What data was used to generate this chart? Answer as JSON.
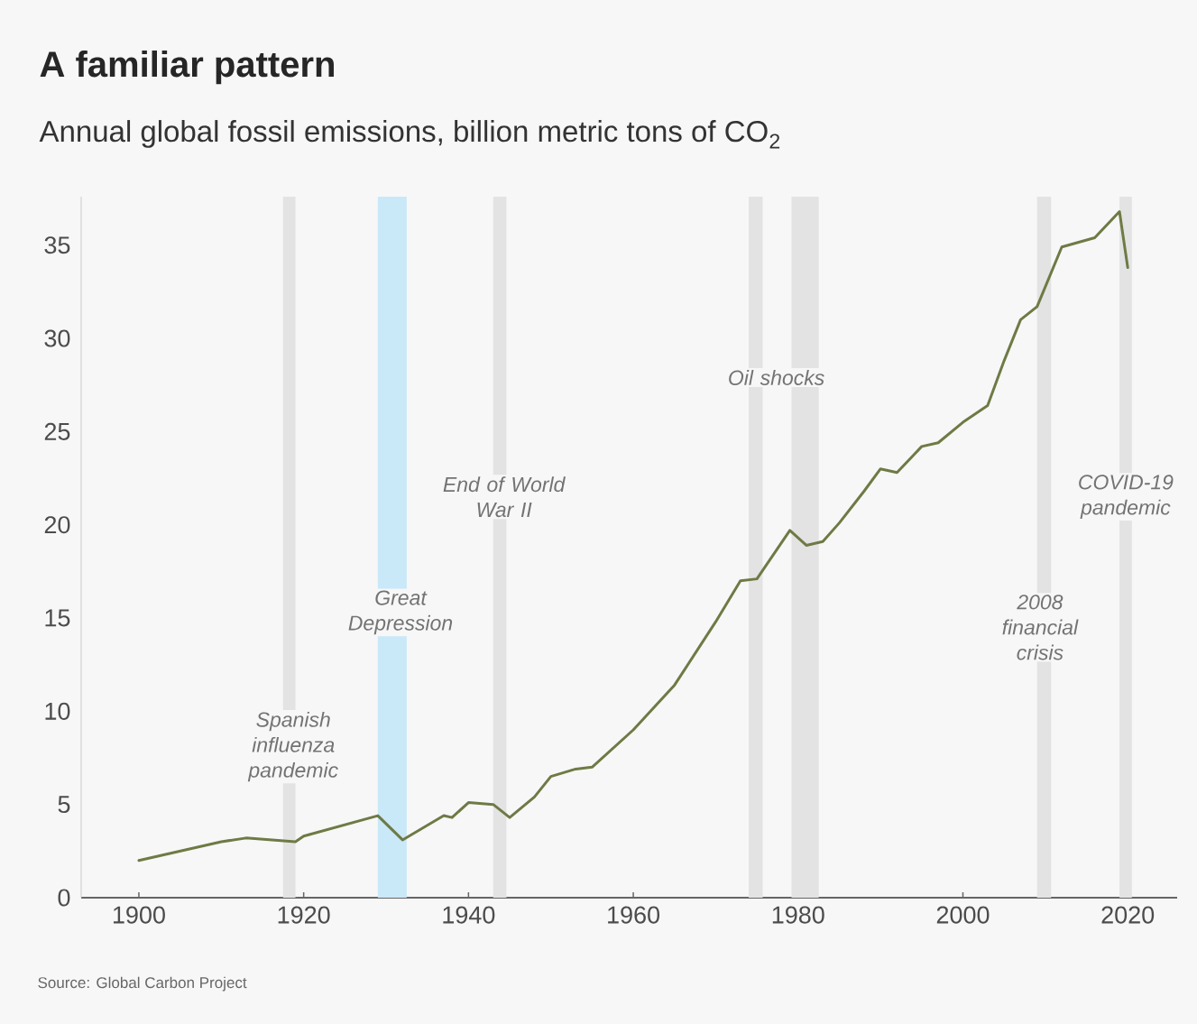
{
  "chart_data": {
    "type": "line",
    "title": "A familiar pattern",
    "subtitle": "Annual global fossil emissions, billion metric tons of CO$_{2}$",
    "x": [
      1900,
      1910,
      1913,
      1919,
      1920,
      1929,
      1932,
      1937,
      1938,
      1940,
      1943,
      1945,
      1948,
      1950,
      1953,
      1955,
      1960,
      1965,
      1970,
      1973,
      1975,
      1979,
      1981,
      1983,
      1985,
      1988,
      1990,
      1992,
      1995,
      1997,
      2000,
      2003,
      2005,
      2007,
      2009,
      2012,
      2016,
      2019,
      2020
    ],
    "series": [
      {
        "color": "#6e7a45",
        "values": [
          2.0,
          3.0,
          3.2,
          3.0,
          3.3,
          4.4,
          3.1,
          4.4,
          4.3,
          5.1,
          5.0,
          4.3,
          5.4,
          6.5,
          6.9,
          7.0,
          9.0,
          11.4,
          14.8,
          17.0,
          17.1,
          19.7,
          18.9,
          19.1,
          20.1,
          21.8,
          23.0,
          22.8,
          24.2,
          24.4,
          25.5,
          26.4,
          28.8,
          31.0,
          31.7,
          34.9,
          35.4,
          36.8,
          33.8
        ]
      }
    ],
    "xlim": [
      1893,
      2026
    ],
    "ylim": [
      0,
      37.6
    ],
    "xticks": [
      1900,
      1920,
      1940,
      1960,
      1980,
      2000,
      2020
    ],
    "yticks": [
      0,
      5,
      10,
      15,
      20,
      25,
      30,
      35
    ],
    "bands": [
      {
        "axis": "x",
        "from": 1917.5,
        "to": 1919,
        "label": "Spanish influenza pandemic",
        "color": "#e3e3e3"
      },
      {
        "axis": "x",
        "from": 1929,
        "to": 1932.5,
        "label": "Great Depression",
        "color": "#c9e8f8"
      },
      {
        "axis": "x",
        "from": 1943,
        "to": 1944.6,
        "label": "End of World War II",
        "color": "#e3e3e3"
      },
      {
        "axis": "x",
        "from": 1974,
        "to": 1975.7,
        "label": "Oil shocks",
        "color": "#e3e3e3"
      },
      {
        "axis": "x",
        "from": 1979.2,
        "to": 1982.5,
        "color": "#e3e3e3"
      },
      {
        "axis": "x",
        "from": 2009,
        "to": 2010.7,
        "label": "2008 financial crisis",
        "color": "#e3e3e3"
      },
      {
        "axis": "x",
        "from": 2019,
        "to": 2020.5,
        "label": "COVID-19 pandemic",
        "color": "#e3e3e3"
      }
    ],
    "annotations": [
      "Source: Global Carbon Project"
    ],
    "grid": false,
    "marker": "none",
    "line_style": "solid"
  }
}
